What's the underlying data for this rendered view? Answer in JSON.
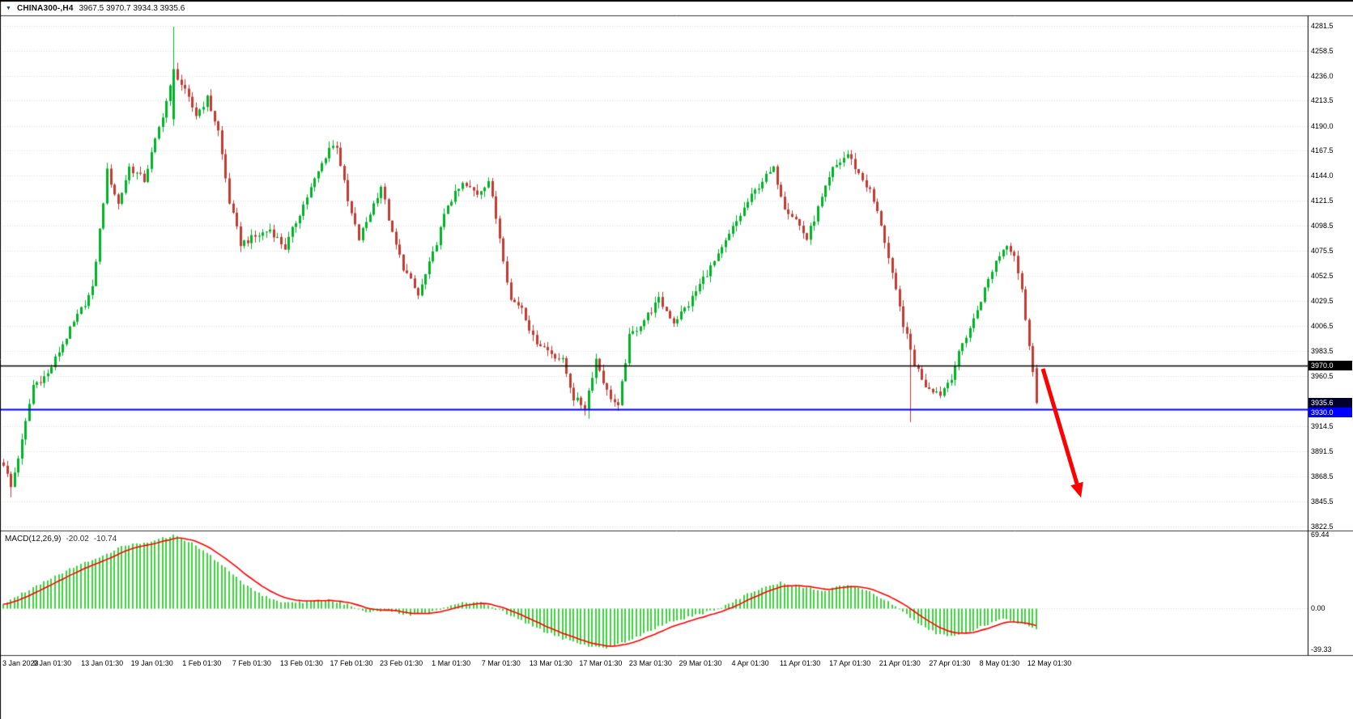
{
  "title": {
    "collapse_icon_glyph": "▼",
    "symbol_period": "CHINA300-,H4",
    "ohlc": "3967.5 3970.7 3934.3 3935.6"
  },
  "colors": {
    "bull": "#00b227",
    "bear": "#bf3b34",
    "macd_hist": "#3fd03f",
    "macd_signal": "#ff0000",
    "grid": "#dcdcdc",
    "level_black": "#000000",
    "level_blue": "#0000ff",
    "arrow": "#ff0000"
  },
  "axis_tags": {
    "level_line": {
      "label": "3970.0",
      "price": 3970.0,
      "bg": "#000000"
    },
    "current": {
      "label": "3935.6",
      "price": 3935.6,
      "bg": "#00002e"
    },
    "level_blue": {
      "label": "3930.0",
      "price": 3930.0,
      "bg": "#0000ff"
    }
  },
  "macd": {
    "label": "MACD(12,26,9)",
    "value_main": "-20.02",
    "value_signal": "-10.74",
    "axis_labels": [
      "69.44",
      "0.00",
      "-39.33"
    ]
  },
  "chart_data": {
    "type": "candlestick",
    "symbol": "CHINA300-",
    "timeframe": "H4",
    "last_bar": {
      "open": 3967.5,
      "high": 3970.7,
      "low": 3934.3,
      "close": 3935.6
    },
    "num_bars": 280,
    "y_range": [
      3818.8,
      4291.0
    ],
    "price_range_visible": [
      3822.5,
      4281.5
    ],
    "y_tick_labels": [
      "4281.5",
      "4258.5",
      "4236.0",
      "4213.5",
      "4190.0",
      "4167.5",
      "4144.0",
      "4121.5",
      "4098.5",
      "4075.5",
      "4052.5",
      "4029.5",
      "4006.5",
      "3983.5",
      "3960.5",
      "3914.5",
      "3891.5",
      "3868.5",
      "3845.5",
      "3822.5"
    ],
    "x_tick_labels": [
      "3 Jan 2023",
      "9 Jan 01:30",
      "13 Jan 01:30",
      "19 Jan 01:30",
      "1 Feb 01:30",
      "7 Feb 01:30",
      "13 Feb 01:30",
      "17 Feb 01:30",
      "23 Feb 01:30",
      "1 Mar 01:30",
      "7 Mar 01:30",
      "13 Mar 01:30",
      "17 Mar 01:30",
      "23 Mar 01:30",
      "29 Mar 01:30",
      "4 Apr 01:30",
      "11 Apr 01:30",
      "17 Apr 01:30",
      "21 Apr 01:30",
      "27 Apr 01:30",
      "8 May 01:30",
      "12 May 01:30"
    ],
    "close_anchors": [
      [
        0,
        3880
      ],
      [
        2,
        3858
      ],
      [
        5,
        3900
      ],
      [
        8,
        3952
      ],
      [
        12,
        3962
      ],
      [
        16,
        3990
      ],
      [
        20,
        4015
      ],
      [
        24,
        4040
      ],
      [
        28,
        4148
      ],
      [
        31,
        4118
      ],
      [
        34,
        4152
      ],
      [
        38,
        4140
      ],
      [
        42,
        4188
      ],
      [
        45,
        4225
      ],
      [
        46,
        4242
      ],
      [
        48,
        4228
      ],
      [
        52,
        4200
      ],
      [
        55,
        4215
      ],
      [
        58,
        4185
      ],
      [
        61,
        4120
      ],
      [
        64,
        4082
      ],
      [
        68,
        4088
      ],
      [
        72,
        4095
      ],
      [
        76,
        4078
      ],
      [
        80,
        4110
      ],
      [
        84,
        4140
      ],
      [
        88,
        4170
      ],
      [
        90,
        4172
      ],
      [
        93,
        4120
      ],
      [
        96,
        4086
      ],
      [
        99,
        4110
      ],
      [
        102,
        4135
      ],
      [
        105,
        4090
      ],
      [
        108,
        4060
      ],
      [
        112,
        4034
      ],
      [
        116,
        4072
      ],
      [
        120,
        4118
      ],
      [
        124,
        4136
      ],
      [
        128,
        4128
      ],
      [
        131,
        4140
      ],
      [
        134,
        4088
      ],
      [
        137,
        4030
      ],
      [
        140,
        4024
      ],
      [
        143,
        3995
      ],
      [
        147,
        3984
      ],
      [
        151,
        3974
      ],
      [
        154,
        3940
      ],
      [
        157,
        3932
      ],
      [
        160,
        3976
      ],
      [
        163,
        3946
      ],
      [
        166,
        3931
      ],
      [
        169,
        3996
      ],
      [
        173,
        4012
      ],
      [
        177,
        4030
      ],
      [
        181,
        4010
      ],
      [
        185,
        4026
      ],
      [
        189,
        4050
      ],
      [
        193,
        4070
      ],
      [
        197,
        4096
      ],
      [
        201,
        4120
      ],
      [
        205,
        4140
      ],
      [
        208,
        4150
      ],
      [
        211,
        4116
      ],
      [
        214,
        4104
      ],
      [
        217,
        4086
      ],
      [
        220,
        4114
      ],
      [
        224,
        4150
      ],
      [
        228,
        4164
      ],
      [
        231,
        4146
      ],
      [
        234,
        4130
      ],
      [
        237,
        4100
      ],
      [
        240,
        4052
      ],
      [
        243,
        4008
      ],
      [
        246,
        3972
      ],
      [
        249,
        3952
      ],
      [
        253,
        3944
      ],
      [
        256,
        3960
      ],
      [
        259,
        3990
      ],
      [
        262,
        4012
      ],
      [
        265,
        4040
      ],
      [
        268,
        4066
      ],
      [
        271,
        4082
      ],
      [
        273,
        4072
      ],
      [
        275,
        4040
      ],
      [
        276,
        4010
      ],
      [
        277,
        3990
      ],
      [
        278,
        3967
      ],
      [
        279,
        3935.6
      ]
    ],
    "bar_overrides": {
      "2": {
        "low": 3849
      },
      "46": {
        "open": 4196,
        "high": 4281,
        "low": 4190,
        "close": 4242
      },
      "158": {
        "low": 3921
      },
      "245": {
        "low": 3918
      },
      "279": {
        "open": 3967.5,
        "high": 3970.7,
        "low": 3934.3,
        "close": 3935.6
      }
    },
    "levels": [
      {
        "price": 3970.0,
        "color": "#000000",
        "width": 1.5,
        "style": "solid"
      },
      {
        "price": 3930.0,
        "color": "#0000ff",
        "width": 2,
        "style": "solid"
      }
    ],
    "indicator": {
      "type": "MACD",
      "params": [
        12,
        26,
        9
      ],
      "macd_value": -20.02,
      "signal_value": -10.74,
      "y_range": [
        -43,
        72
      ],
      "scale_labels": [
        69.44,
        0.0,
        -39.33
      ],
      "macd_anchors": [
        [
          0,
          4
        ],
        [
          8,
          20
        ],
        [
          16,
          34
        ],
        [
          24,
          46
        ],
        [
          32,
          58
        ],
        [
          40,
          64
        ],
        [
          46,
          69
        ],
        [
          52,
          60
        ],
        [
          58,
          44
        ],
        [
          64,
          26
        ],
        [
          70,
          12
        ],
        [
          76,
          5
        ],
        [
          82,
          6
        ],
        [
          88,
          8
        ],
        [
          93,
          3
        ],
        [
          98,
          -3
        ],
        [
          104,
          -2
        ],
        [
          110,
          -7
        ],
        [
          116,
          -3
        ],
        [
          122,
          4
        ],
        [
          128,
          6
        ],
        [
          134,
          -2
        ],
        [
          140,
          -12
        ],
        [
          146,
          -22
        ],
        [
          152,
          -30
        ],
        [
          158,
          -36
        ],
        [
          162,
          -38
        ],
        [
          168,
          -32
        ],
        [
          174,
          -22
        ],
        [
          180,
          -13
        ],
        [
          186,
          -8
        ],
        [
          192,
          -2
        ],
        [
          198,
          8
        ],
        [
          204,
          18
        ],
        [
          210,
          24
        ],
        [
          216,
          20
        ],
        [
          222,
          17
        ],
        [
          228,
          22
        ],
        [
          234,
          15
        ],
        [
          240,
          4
        ],
        [
          244,
          -6
        ],
        [
          248,
          -16
        ],
        [
          252,
          -24
        ],
        [
          256,
          -27
        ],
        [
          260,
          -24
        ],
        [
          264,
          -18
        ],
        [
          268,
          -12
        ],
        [
          271,
          -10
        ],
        [
          274,
          -14
        ],
        [
          277,
          -18
        ],
        [
          279,
          -20.02
        ]
      ]
    },
    "annotations": [
      {
        "type": "arrow",
        "direction": "down-right",
        "color": "#ff0000",
        "from_price": 3966,
        "to_price": 3856
      }
    ]
  }
}
